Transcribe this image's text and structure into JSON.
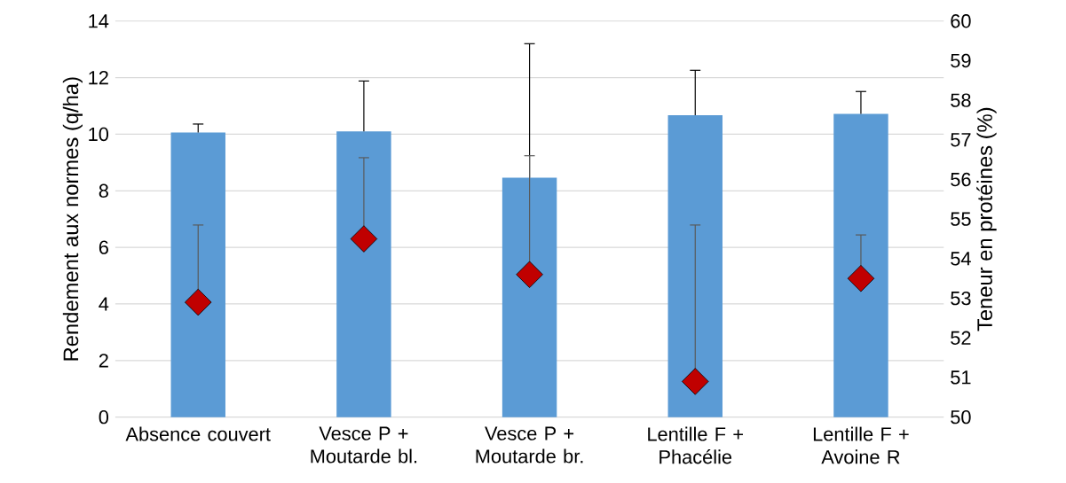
{
  "chart_data": {
    "type": "bar",
    "categories": [
      "Absence couvert",
      "Vesce P + Moutarde bl.",
      "Vesce P + Moutarde br.",
      "Lentille F + Phacélie",
      "Lentille F + Avoine R"
    ],
    "ylabel": "Rendement aux normes (q/ha)",
    "y2label": "Teneur en protéines (%)",
    "ylim": [
      0,
      14
    ],
    "yticks": [
      0,
      2,
      4,
      6,
      8,
      10,
      12,
      14
    ],
    "y2lim": [
      50,
      60
    ],
    "y2ticks": [
      50,
      51,
      52,
      53,
      54,
      55,
      56,
      57,
      58,
      59,
      60
    ],
    "grid": "y",
    "series": [
      {
        "color": "#5b9bd5",
        "values": [
          10.06,
          10.1,
          8.46,
          10.67,
          10.72
        ],
        "errors": [
          [
            10.06,
            10.36
          ],
          [
            10.1,
            11.88
          ],
          [
            8.46,
            13.2
          ],
          [
            10.67,
            12.26
          ],
          [
            10.72,
            11.51
          ]
        ]
      },
      {
        "type": "scatter",
        "axis": "y2",
        "color": "#c00000",
        "marker": "diamond",
        "values": [
          52.9,
          54.5,
          53.6,
          50.9,
          53.5
        ],
        "errors": [
          [
            52.9,
            54.85
          ],
          [
            54.5,
            56.55
          ],
          [
            53.6,
            56.6
          ],
          [
            50.9,
            54.85
          ],
          [
            53.5,
            54.6
          ]
        ]
      }
    ]
  }
}
